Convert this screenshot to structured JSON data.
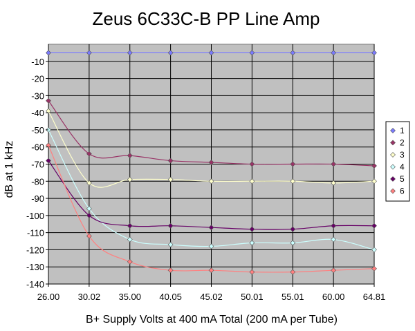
{
  "chart_data": {
    "type": "line",
    "title": "Zeus 6C33C-B PP Line Amp",
    "xlabel": "B+ Supply Volts at 400 mA Total (200 mA per Tube)",
    "ylabel": "dB at 1 kHz",
    "categories": [
      "26.00",
      "30.02",
      "35.00",
      "40.05",
      "45.02",
      "50.01",
      "55.01",
      "60.00",
      "64.81"
    ],
    "ylim": [
      -140,
      0
    ],
    "yticks": [
      -10,
      -20,
      -30,
      -40,
      -50,
      -60,
      -70,
      -80,
      -90,
      -100,
      -110,
      -120,
      -130,
      -140
    ],
    "grid": true,
    "plot_background": "#c0c0c0",
    "legend_position": "right",
    "series": [
      {
        "name": "1",
        "color": "#7b7bff",
        "values": [
          -5,
          -5,
          -5,
          -5,
          -5,
          -5,
          -5,
          -5,
          -5
        ]
      },
      {
        "name": "2",
        "color": "#993366",
        "values": [
          -33,
          -64,
          -65,
          -68,
          -69,
          -70,
          -70,
          -70,
          -71
        ]
      },
      {
        "name": "3",
        "color": "#ffffcc",
        "values": [
          -39,
          -81,
          -79,
          -79,
          -80,
          -80,
          -80,
          -81,
          -80
        ]
      },
      {
        "name": "4",
        "color": "#ccffff",
        "values": [
          -50,
          -96,
          -114,
          -117,
          -118,
          -116,
          -116,
          -114,
          -120
        ]
      },
      {
        "name": "5",
        "color": "#660066",
        "values": [
          -68,
          -100,
          -106,
          -106,
          -107,
          -108,
          -108,
          -106,
          -106
        ]
      },
      {
        "name": "6",
        "color": "#ff8080",
        "values": [
          -59,
          -112,
          -127,
          -132,
          -132,
          -133,
          -133,
          -132,
          -131
        ]
      }
    ]
  }
}
